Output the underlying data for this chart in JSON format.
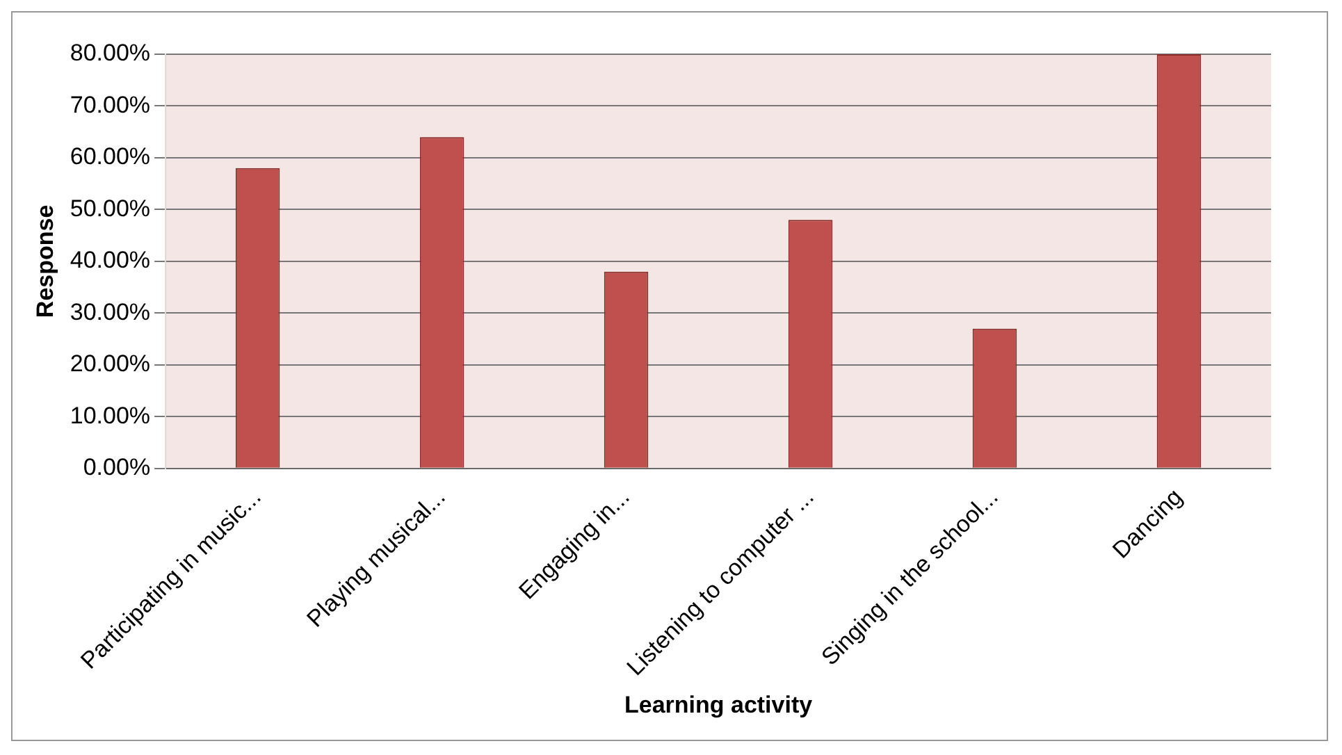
{
  "chart_data": {
    "type": "bar",
    "xlabel": "Learning activity",
    "ylabel": "Response",
    "categories": [
      "Participating in music...",
      "Playing musical...",
      "Engaging in...",
      "Listening to computer ...",
      "Singing in the school...",
      "Dancing"
    ],
    "values": [
      58,
      64,
      38,
      48,
      27,
      80
    ],
    "color": "#c0504d",
    "ylim": [
      0,
      80
    ],
    "yticks": [
      {
        "value": 0,
        "label": "0.00%"
      },
      {
        "value": 10,
        "label": "10.00%"
      },
      {
        "value": 20,
        "label": "20.00%"
      },
      {
        "value": 30,
        "label": "30.00%"
      },
      {
        "value": 40,
        "label": "40.00%"
      },
      {
        "value": 50,
        "label": "50.00%"
      },
      {
        "value": 60,
        "label": "60.00%"
      },
      {
        "value": 70,
        "label": "70.00%"
      },
      {
        "value": 80,
        "label": "80.00%"
      }
    ],
    "grid": "y",
    "legend": false
  }
}
